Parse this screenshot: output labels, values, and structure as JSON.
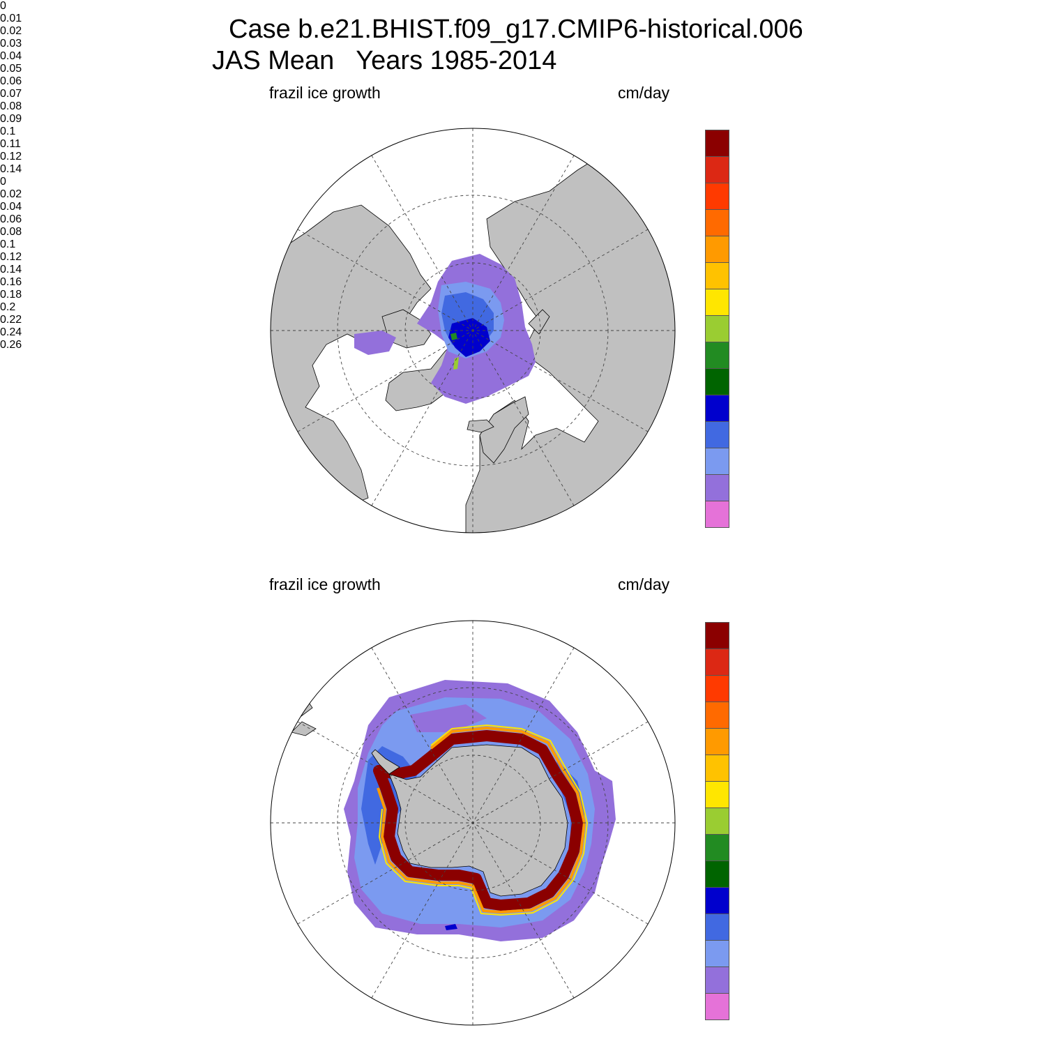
{
  "title": {
    "line1": "Case b.e21.BHIST.f09_g17.CMIP6-historical.006",
    "line2": "JAS Mean   Years 1985-2014"
  },
  "colors": {
    "land": "#c0c0c0",
    "ocean": "#ffffff",
    "bins": [
      "#e572d8",
      "#9370db",
      "#7b9af0",
      "#4169e1",
      "#0000cd",
      "#006400",
      "#228b22",
      "#9acd32",
      "#ffe600",
      "#ffc200",
      "#ff9a00",
      "#ff6a00",
      "#ff3a00",
      "#dc2814",
      "#8b0000"
    ]
  },
  "panels": [
    {
      "id": "north",
      "field": "frazil ice growth",
      "units": "cm/day",
      "colorbar": {
        "labels": [
          "0",
          "0.01",
          "0.02",
          "0.03",
          "0.04",
          "0.05",
          "0.06",
          "0.07",
          "0.08",
          "0.09",
          "0.1",
          "0.11",
          "0.12",
          "0.14"
        ]
      }
    },
    {
      "id": "south",
      "field": "frazil ice growth",
      "units": "cm/day",
      "colorbar": {
        "labels": [
          "0",
          "0.02",
          "0.04",
          "0.06",
          "0.08",
          "0.1",
          "0.12",
          "0.14",
          "0.16",
          "0.18",
          "0.2",
          "0.22",
          "0.24",
          "0.26"
        ]
      }
    }
  ]
}
